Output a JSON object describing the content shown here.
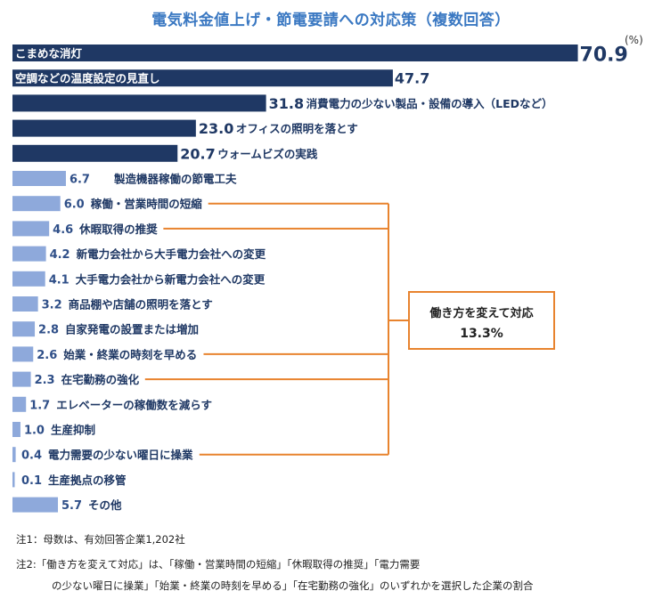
{
  "chart_data": {
    "type": "bar",
    "orientation": "horizontal",
    "title": "電気料金値上げ・節電要請への対応策（複数回答）",
    "unit": "(%)",
    "categories": [
      "こまめな消灯",
      "空調などの温度設定の見直し",
      "消費電力の少ない製品・設備の導入（LEDなど）",
      "オフィスの照明を落とす",
      "ウォームビズの実践",
      "製造機器稼働の節電工夫",
      "稼働・営業時間の短縮",
      "休暇取得の推奨",
      "新電力会社から大手電力会社への変更",
      "大手電力会社から新電力会社への変更",
      "商品棚や店舗の照明を落とす",
      "自家発電の設置または増加",
      "始業・終業の時刻を早める",
      "在宅勤務の強化",
      "エレベーターの稼働数を減らす",
      "生産抑制",
      "電力需要の少ない曜日に操業",
      "生産拠点の移管",
      "その他"
    ],
    "values": [
      70.9,
      47.7,
      31.8,
      23.0,
      20.7,
      6.7,
      6.0,
      4.6,
      4.2,
      4.1,
      3.2,
      2.8,
      2.6,
      2.3,
      1.7,
      1.0,
      0.4,
      0.1,
      5.7
    ],
    "value_labels": [
      "70.9",
      "47.7",
      "31.8",
      "23.0",
      "20.7",
      "6.7",
      "6.0",
      "4.6",
      "4.2",
      "4.1",
      "3.2",
      "2.8",
      "2.6",
      "2.3",
      "1.7",
      "1.0",
      "0.4",
      "0.1",
      "5.7"
    ],
    "bar_colors": {
      "top5": "#1f3864",
      "others": "#8ea9db"
    },
    "bracket_color": "#e8832e",
    "bracket_items": [
      "稼働・営業時間の短縮",
      "休暇取得の推奨",
      "始業・終業の時刻を早める",
      "在宅勤務の強化",
      "電力需要の少ない曜日に操業"
    ],
    "callout": {
      "title": "働き方を変えて対応",
      "value": "13.3%"
    }
  },
  "notes": {
    "note1": "注1：母数は、有効回答企業1,202社",
    "note2_line1": "注2:「働き方を変えて対応」は、「稼働・営業時間の短縮」「休暇取得の推奨」「電力需要",
    "note2_line2": "の少ない曜日に操業」「始業・終業の時刻を早める」「在宅勤務の強化」のいずれかを選択した企業の割合"
  }
}
